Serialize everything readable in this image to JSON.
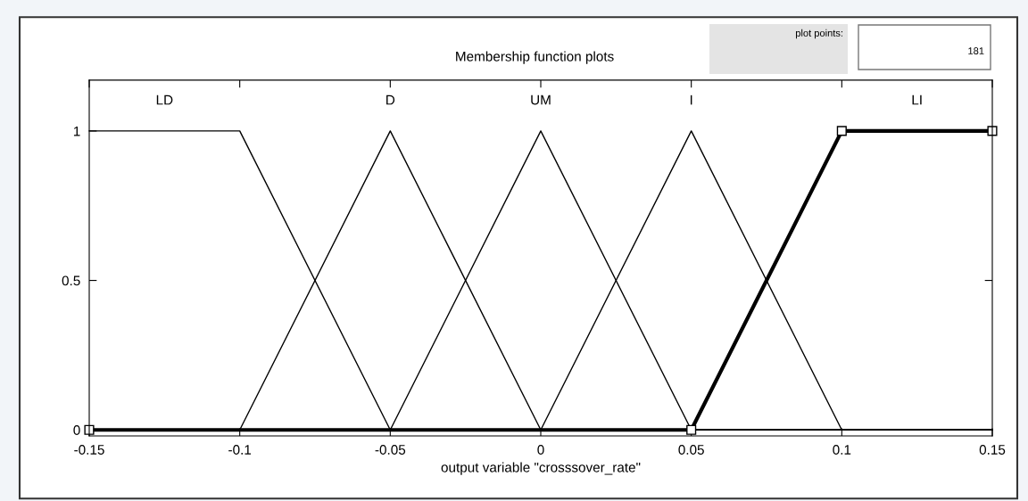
{
  "chart_data": {
    "type": "line",
    "title": "Membership function plots",
    "xlabel": "output variable \"crosssover_rate\"",
    "annotations": [
      "plot points:",
      "181"
    ],
    "xlim": [
      -0.15,
      0.15
    ],
    "xticks": [
      -0.15,
      -0.1,
      -0.05,
      0,
      0.05,
      0.1,
      0.15
    ],
    "ylim": [
      -0.02,
      1.17
    ],
    "yticks": [
      0,
      0.5,
      1
    ],
    "grid": false,
    "legend": "top",
    "series": [
      {
        "name": "LD",
        "color": "#000000",
        "x": [
          -0.15,
          -0.1,
          -0.05,
          0.15
        ],
        "values": [
          1,
          1,
          0,
          0
        ]
      },
      {
        "name": "D",
        "color": "#000000",
        "x": [
          -0.15,
          -0.1,
          -0.05,
          0,
          0.15
        ],
        "values": [
          0,
          0,
          1,
          0,
          0
        ]
      },
      {
        "name": "UM",
        "color": "#000000",
        "x": [
          -0.15,
          -0.05,
          0,
          0.05,
          0.15
        ],
        "values": [
          0,
          0,
          1,
          0,
          0
        ]
      },
      {
        "name": "I",
        "color": "#000000",
        "x": [
          -0.15,
          0,
          0.05,
          0.1,
          0.15
        ],
        "values": [
          0,
          0,
          1,
          0,
          0
        ]
      },
      {
        "name": "LI",
        "color": "#000000",
        "x": [
          -0.15,
          0.05,
          0.1,
          0.15
        ],
        "values": [
          0,
          0,
          1,
          1
        ],
        "marker": "square"
      }
    ]
  }
}
